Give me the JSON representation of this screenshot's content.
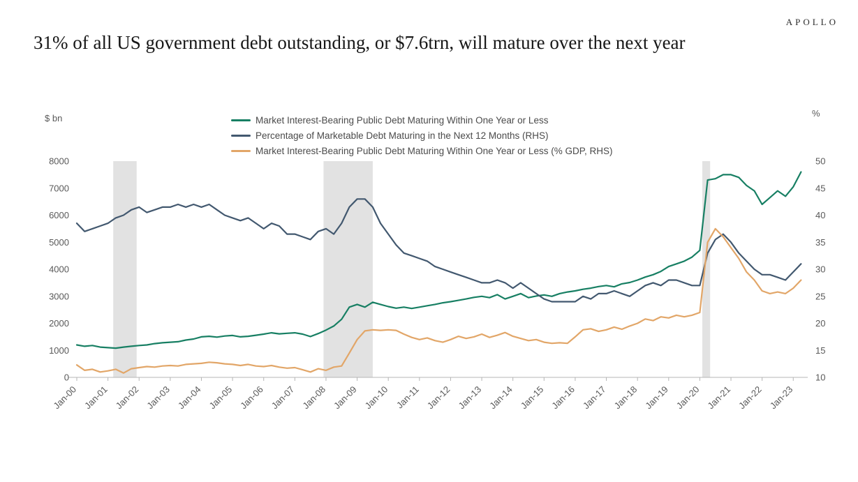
{
  "header": {
    "brand": "APOLLO",
    "title": "31% of all US government debt outstanding, or $7.6trn, will mature over the next year"
  },
  "chart_data": {
    "type": "line",
    "title": "31% of all US government debt outstanding, or $7.6trn, will mature over the next year",
    "left_axis": {
      "label": "$ bn",
      "range": [
        0,
        8000
      ],
      "ticks": [
        0,
        1000,
        2000,
        3000,
        4000,
        5000,
        6000,
        7000,
        8000
      ]
    },
    "right_axis": {
      "label": "%",
      "range": [
        10,
        50
      ],
      "ticks": [
        10,
        15,
        20,
        25,
        30,
        35,
        40,
        45,
        50
      ]
    },
    "x_range": [
      2000,
      2023.42
    ],
    "x_tick_labels": [
      "Jan-00",
      "Jan-01",
      "Jan-02",
      "Jan-03",
      "Jan-04",
      "Jan-05",
      "Jan-06",
      "Jan-07",
      "Jan-08",
      "Jan-09",
      "Jan-10",
      "Jan-11",
      "Jan-12",
      "Jan-13",
      "Jan-14",
      "Jan-15",
      "Jan-16",
      "Jan-17",
      "Jan-18",
      "Jan-19",
      "Jan-20",
      "Jan-21",
      "Jan-22",
      "Jan-23"
    ],
    "recession_bands": [
      [
        2001.17,
        2001.92
      ],
      [
        2007.92,
        2009.5
      ],
      [
        2020.08,
        2020.33
      ]
    ],
    "recession_color": "#e2e2e2",
    "x_start": 2000,
    "x_step": 0.25,
    "legend_position": "top",
    "grid": false,
    "series": [
      {
        "name": "Market Interest-Bearing Public Debt Maturing Within One Year or Less",
        "axis": "left",
        "color": "#177f63",
        "values": [
          1200,
          1150,
          1180,
          1120,
          1100,
          1080,
          1120,
          1150,
          1180,
          1200,
          1250,
          1280,
          1300,
          1320,
          1380,
          1420,
          1500,
          1520,
          1490,
          1530,
          1550,
          1500,
          1520,
          1560,
          1600,
          1650,
          1610,
          1630,
          1650,
          1600,
          1510,
          1620,
          1750,
          1900,
          2150,
          2600,
          2700,
          2600,
          2780,
          2700,
          2620,
          2560,
          2600,
          2550,
          2600,
          2650,
          2700,
          2760,
          2800,
          2850,
          2900,
          2960,
          3000,
          2950,
          3060,
          2900,
          3000,
          3100,
          2950,
          3010,
          3050,
          3000,
          3100,
          3160,
          3200,
          3260,
          3300,
          3360,
          3400,
          3350,
          3460,
          3510,
          3600,
          3710,
          3800,
          3920,
          4100,
          4200,
          4300,
          4450,
          4700,
          7300,
          7350,
          7500,
          7500,
          7400,
          7100,
          6900,
          6400,
          6650,
          6900,
          6700,
          7050,
          7600
        ]
      },
      {
        "name": "Percentage of Marketable Debt Maturing in the Next 12 Months (RHS)",
        "axis": "right",
        "color": "#42586f",
        "values": [
          38.5,
          37,
          37.5,
          38,
          38.5,
          39.5,
          40,
          41,
          41.5,
          40.5,
          41,
          41.5,
          41.5,
          42,
          41.5,
          42,
          41.5,
          42,
          41,
          40,
          39.5,
          39,
          39.5,
          38.5,
          37.5,
          38.5,
          38,
          36.5,
          36.5,
          36,
          35.5,
          37,
          37.5,
          36.5,
          38.5,
          41.5,
          43,
          43,
          41.5,
          38.5,
          36.5,
          34.5,
          33,
          32.5,
          32,
          31.5,
          30.5,
          30,
          29.5,
          29,
          28.5,
          28,
          27.5,
          27.5,
          28,
          27.5,
          26.5,
          27.5,
          26.5,
          25.5,
          24.5,
          24,
          24,
          24,
          24,
          25,
          24.5,
          25.5,
          25.5,
          26,
          25.5,
          25,
          26,
          27,
          27.5,
          27,
          28,
          28,
          27.5,
          27,
          27,
          33,
          35.5,
          36.5,
          35,
          33,
          31.5,
          30,
          29,
          29,
          28.5,
          28,
          29.5,
          31
        ]
      },
      {
        "name": "Market Interest-Bearing Public Debt Maturing Within One Year or Less (% GDP, RHS)",
        "axis": "right",
        "color": "#e2a668",
        "values": [
          12.3,
          11.3,
          11.5,
          11,
          11.2,
          11.5,
          10.8,
          11.6,
          11.8,
          12,
          11.9,
          12.1,
          12.2,
          12.1,
          12.4,
          12.5,
          12.6,
          12.8,
          12.7,
          12.5,
          12.4,
          12.2,
          12.4,
          12.1,
          12,
          12.2,
          11.9,
          11.7,
          11.8,
          11.4,
          11,
          11.6,
          11.3,
          11.9,
          12.1,
          14.5,
          17,
          18.6,
          18.8,
          18.7,
          18.8,
          18.7,
          18,
          17.4,
          17,
          17.3,
          16.8,
          16.5,
          17,
          17.6,
          17.2,
          17.5,
          18,
          17.4,
          17.8,
          18.3,
          17.6,
          17.2,
          16.8,
          17,
          16.5,
          16.3,
          16.4,
          16.3,
          17.5,
          18.8,
          19,
          18.5,
          18.8,
          19.3,
          18.9,
          19.5,
          20,
          20.8,
          20.5,
          21.2,
          21,
          21.5,
          21.2,
          21.5,
          22,
          35,
          37.5,
          36,
          34,
          32,
          29.5,
          28,
          26,
          25.5,
          25.8,
          25.5,
          26.5,
          28
        ]
      }
    ]
  }
}
